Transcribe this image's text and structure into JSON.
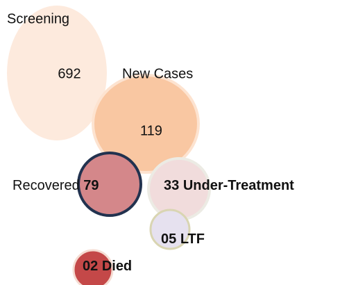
{
  "nodes": [
    {
      "label": "Screening",
      "value": "692"
    },
    {
      "label": "New Cases",
      "value": "119"
    },
    {
      "label": "Recovered",
      "value": "79"
    },
    {
      "label": "Under-Treatment",
      "value": "33"
    },
    {
      "label": "LTF",
      "value": "05"
    },
    {
      "label": "Died",
      "value": "02"
    }
  ]
}
